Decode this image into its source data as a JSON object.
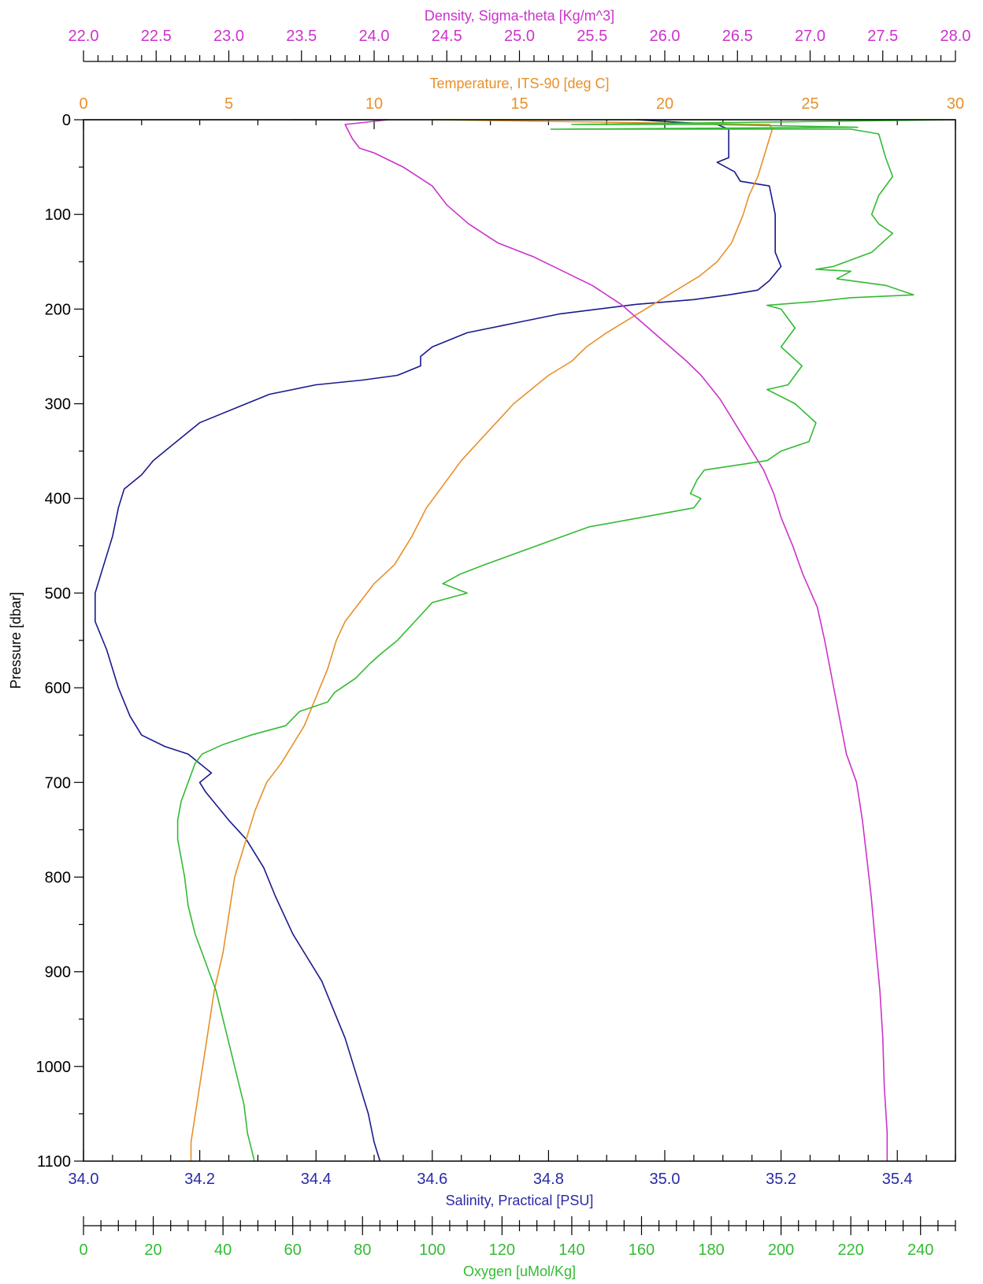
{
  "chart_data": {
    "type": "line",
    "title": "",
    "y_axis": {
      "label": "Pressure [dbar]",
      "range": [
        0,
        1100
      ],
      "inverted": true,
      "ticks": [
        0,
        100,
        200,
        300,
        400,
        500,
        600,
        700,
        800,
        900,
        1000,
        1100
      ],
      "tick_labels": [
        "0",
        "100",
        "200",
        "300",
        "400",
        "500",
        "600",
        "700",
        "800",
        "900",
        "1000",
        "1100"
      ]
    },
    "x_axes": [
      {
        "id": "density",
        "label": "Density, Sigma-theta [Kg/m^3]",
        "color": "#cc33cc",
        "position": "top",
        "range": [
          22.0,
          28.0
        ],
        "ticks": [
          22.0,
          22.5,
          23.0,
          23.5,
          24.0,
          24.5,
          25.0,
          25.5,
          26.0,
          26.5,
          27.0,
          27.5,
          28.0
        ],
        "tick_labels": [
          "22.0",
          "22.5",
          "23.0",
          "23.5",
          "24.0",
          "24.5",
          "25.0",
          "25.5",
          "26.0",
          "26.5",
          "27.0",
          "27.5",
          "28.0"
        ]
      },
      {
        "id": "temperature",
        "label": "Temperature, ITS-90 [deg C]",
        "color": "#e8902a",
        "position": "top-inner",
        "range": [
          0,
          30
        ],
        "ticks": [
          0,
          5,
          10,
          15,
          20,
          25,
          30
        ],
        "tick_labels": [
          "0",
          "5",
          "10",
          "15",
          "20",
          "25",
          "30"
        ]
      },
      {
        "id": "salinity",
        "label": "Salinity, Practical [PSU]",
        "color": "#2a2aa8",
        "position": "bottom",
        "range": [
          34.0,
          35.5
        ],
        "ticks": [
          34.0,
          34.2,
          34.4,
          34.6,
          34.8,
          35.0,
          35.2,
          35.4
        ],
        "tick_labels": [
          "34.0",
          "34.2",
          "34.4",
          "34.6",
          "34.8",
          "35.0",
          "35.2",
          "35.4"
        ]
      },
      {
        "id": "oxygen",
        "label": "Oxygen [uMol/Kg]",
        "color": "#33bb33",
        "position": "bottom-outer",
        "range": [
          0,
          250
        ],
        "ticks": [
          0,
          20,
          40,
          60,
          80,
          100,
          120,
          140,
          160,
          180,
          200,
          220,
          240
        ],
        "tick_labels": [
          "0",
          "20",
          "40",
          "60",
          "80",
          "100",
          "120",
          "140",
          "160",
          "180",
          "200",
          "220",
          "240"
        ]
      }
    ],
    "series": [
      {
        "axis": "salinity",
        "color": "#1a1a8c",
        "points": [
          [
            34.95,
            0
          ],
          [
            35.09,
            5
          ],
          [
            35.11,
            10
          ],
          [
            35.11,
            25
          ],
          [
            35.11,
            40
          ],
          [
            35.09,
            45
          ],
          [
            35.12,
            55
          ],
          [
            35.13,
            65
          ],
          [
            35.18,
            70
          ],
          [
            35.19,
            100
          ],
          [
            35.19,
            140
          ],
          [
            35.2,
            155
          ],
          [
            35.18,
            170
          ],
          [
            35.16,
            180
          ],
          [
            35.11,
            185
          ],
          [
            35.05,
            190
          ],
          [
            34.95,
            195
          ],
          [
            34.82,
            205
          ],
          [
            34.74,
            215
          ],
          [
            34.66,
            225
          ],
          [
            34.6,
            240
          ],
          [
            34.58,
            250
          ],
          [
            34.58,
            260
          ],
          [
            34.54,
            270
          ],
          [
            34.48,
            275
          ],
          [
            34.4,
            280
          ],
          [
            34.32,
            290
          ],
          [
            34.28,
            300
          ],
          [
            34.2,
            320
          ],
          [
            34.18,
            330
          ],
          [
            34.15,
            345
          ],
          [
            34.12,
            360
          ],
          [
            34.1,
            375
          ],
          [
            34.07,
            390
          ],
          [
            34.06,
            410
          ],
          [
            34.05,
            440
          ],
          [
            34.04,
            460
          ],
          [
            34.03,
            480
          ],
          [
            34.02,
            500
          ],
          [
            34.02,
            530
          ],
          [
            34.04,
            560
          ],
          [
            34.06,
            600
          ],
          [
            34.08,
            630
          ],
          [
            34.1,
            650
          ],
          [
            34.14,
            662
          ],
          [
            34.18,
            670
          ],
          [
            34.2,
            680
          ],
          [
            34.22,
            690
          ],
          [
            34.2,
            700
          ],
          [
            34.21,
            710
          ],
          [
            34.25,
            740
          ],
          [
            34.28,
            760
          ],
          [
            34.31,
            790
          ],
          [
            34.33,
            820
          ],
          [
            34.36,
            860
          ],
          [
            34.39,
            890
          ],
          [
            34.41,
            910
          ],
          [
            34.43,
            940
          ],
          [
            34.45,
            970
          ],
          [
            34.47,
            1010
          ],
          [
            34.49,
            1050
          ],
          [
            34.5,
            1080
          ],
          [
            34.51,
            1100
          ]
        ]
      },
      {
        "axis": "temperature",
        "color": "#e8902a",
        "points": [
          [
            12,
            0
          ],
          [
            23.6,
            5
          ],
          [
            23.7,
            10
          ],
          [
            23.6,
            20
          ],
          [
            23.4,
            40
          ],
          [
            23.2,
            60
          ],
          [
            22.9,
            80
          ],
          [
            22.7,
            100
          ],
          [
            22.3,
            130
          ],
          [
            21.8,
            150
          ],
          [
            21.2,
            165
          ],
          [
            20.4,
            180
          ],
          [
            19.6,
            195
          ],
          [
            18.8,
            210
          ],
          [
            18.0,
            225
          ],
          [
            17.3,
            240
          ],
          [
            16.8,
            255
          ],
          [
            16.0,
            270
          ],
          [
            15.4,
            285
          ],
          [
            14.8,
            300
          ],
          [
            14.2,
            320
          ],
          [
            13.6,
            340
          ],
          [
            13.0,
            360
          ],
          [
            12.4,
            385
          ],
          [
            11.8,
            410
          ],
          [
            11.3,
            440
          ],
          [
            10.7,
            470
          ],
          [
            10.0,
            490
          ],
          [
            9.5,
            510
          ],
          [
            9.0,
            530
          ],
          [
            8.7,
            550
          ],
          [
            8.4,
            580
          ],
          [
            8.0,
            610
          ],
          [
            7.6,
            640
          ],
          [
            7.2,
            660
          ],
          [
            6.8,
            680
          ],
          [
            6.3,
            700
          ],
          [
            5.9,
            730
          ],
          [
            5.6,
            760
          ],
          [
            5.2,
            800
          ],
          [
            5.0,
            840
          ],
          [
            4.8,
            880
          ],
          [
            4.5,
            920
          ],
          [
            4.3,
            960
          ],
          [
            4.1,
            1000
          ],
          [
            3.9,
            1040
          ],
          [
            3.7,
            1080
          ],
          [
            3.7,
            1100
          ]
        ]
      },
      {
        "axis": "density",
        "color": "#cc33cc",
        "points": [
          [
            22.0,
            0
          ],
          [
            24.1,
            0
          ],
          [
            23.8,
            5
          ],
          [
            23.85,
            20
          ],
          [
            23.9,
            30
          ],
          [
            24.0,
            35
          ],
          [
            24.2,
            50
          ],
          [
            24.4,
            70
          ],
          [
            24.5,
            90
          ],
          [
            24.65,
            110
          ],
          [
            24.85,
            130
          ],
          [
            25.1,
            145
          ],
          [
            25.3,
            160
          ],
          [
            25.5,
            175
          ],
          [
            25.7,
            195
          ],
          [
            25.85,
            215
          ],
          [
            26.0,
            235
          ],
          [
            26.15,
            255
          ],
          [
            26.25,
            270
          ],
          [
            26.38,
            295
          ],
          [
            26.48,
            320
          ],
          [
            26.58,
            345
          ],
          [
            26.68,
            370
          ],
          [
            26.75,
            395
          ],
          [
            26.8,
            420
          ],
          [
            26.88,
            450
          ],
          [
            26.95,
            480
          ],
          [
            27.05,
            515
          ],
          [
            27.1,
            550
          ],
          [
            27.15,
            590
          ],
          [
            27.2,
            630
          ],
          [
            27.25,
            670
          ],
          [
            27.32,
            700
          ],
          [
            27.36,
            740
          ],
          [
            27.39,
            780
          ],
          [
            27.42,
            820
          ],
          [
            27.45,
            870
          ],
          [
            27.48,
            920
          ],
          [
            27.5,
            970
          ],
          [
            27.51,
            1020
          ],
          [
            27.53,
            1070
          ],
          [
            27.53,
            1100
          ]
        ]
      },
      {
        "axis": "oxygen",
        "color": "#33bb33",
        "points": [
          [
            60,
            0
          ],
          [
            250,
            0
          ],
          [
            140,
            5
          ],
          [
            180,
            5
          ],
          [
            222,
            8
          ],
          [
            134,
            10
          ],
          [
            220,
            10
          ],
          [
            228,
            15
          ],
          [
            230,
            40
          ],
          [
            232,
            60
          ],
          [
            228,
            80
          ],
          [
            226,
            100
          ],
          [
            228,
            110
          ],
          [
            232,
            120
          ],
          [
            226,
            140
          ],
          [
            215,
            155
          ],
          [
            210,
            158
          ],
          [
            220,
            160
          ],
          [
            216,
            168
          ],
          [
            230,
            175
          ],
          [
            238,
            185
          ],
          [
            220,
            188
          ],
          [
            210,
            192
          ],
          [
            196,
            196
          ],
          [
            200,
            200
          ],
          [
            204,
            220
          ],
          [
            200,
            240
          ],
          [
            206,
            260
          ],
          [
            202,
            280
          ],
          [
            196,
            285
          ],
          [
            204,
            300
          ],
          [
            210,
            320
          ],
          [
            208,
            340
          ],
          [
            200,
            350
          ],
          [
            196,
            360
          ],
          [
            178,
            370
          ],
          [
            176,
            380
          ],
          [
            174,
            395
          ],
          [
            177,
            400
          ],
          [
            175,
            410
          ],
          [
            160,
            420
          ],
          [
            145,
            430
          ],
          [
            130,
            450
          ],
          [
            115,
            470
          ],
          [
            108,
            480
          ],
          [
            103,
            490
          ],
          [
            110,
            500
          ],
          [
            100,
            510
          ],
          [
            95,
            530
          ],
          [
            90,
            550
          ],
          [
            85,
            565
          ],
          [
            82,
            575
          ],
          [
            78,
            590
          ],
          [
            72,
            605
          ],
          [
            70,
            615
          ],
          [
            62,
            625
          ],
          [
            58,
            640
          ],
          [
            48,
            650
          ],
          [
            40,
            660
          ],
          [
            34,
            670
          ],
          [
            32,
            680
          ],
          [
            30,
            700
          ],
          [
            28,
            720
          ],
          [
            27,
            740
          ],
          [
            27,
            760
          ],
          [
            28,
            780
          ],
          [
            29,
            800
          ],
          [
            30,
            830
          ],
          [
            32,
            860
          ],
          [
            34,
            880
          ],
          [
            36,
            900
          ],
          [
            38,
            920
          ],
          [
            40,
            950
          ],
          [
            42,
            980
          ],
          [
            44,
            1010
          ],
          [
            46,
            1040
          ],
          [
            47,
            1070
          ],
          [
            49,
            1100
          ]
        ]
      }
    ]
  }
}
